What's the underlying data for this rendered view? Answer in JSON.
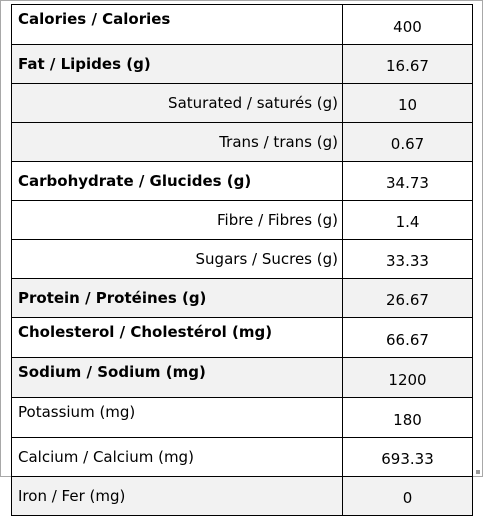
{
  "rows": [
    {
      "label": "Calories / Calories",
      "value": "400"
    },
    {
      "label": "Fat / Lipides  (g)",
      "value": "16.67"
    },
    {
      "label": "Saturated / saturés (g)",
      "value": "10"
    },
    {
      "label": "Trans / trans (g)",
      "value": "0.67"
    },
    {
      "label": "Carbohydrate / Glucides (g)",
      "value": "34.73"
    },
    {
      "label": "Fibre / Fibres (g)",
      "value": "1.4"
    },
    {
      "label": "Sugars / Sucres  (g)",
      "value": "33.33"
    },
    {
      "label": "Protein /  Protéines (g)",
      "value": "26.67"
    },
    {
      "label": "Cholesterol / Cholestérol (mg)",
      "value": "66.67"
    },
    {
      "label": "Sodium / Sodium (mg)",
      "value": "1200"
    },
    {
      "label": "Potassium (mg)",
      "value": "180"
    },
    {
      "label": "Calcium / Calcium (mg)",
      "value": "693.33"
    },
    {
      "label": "Iron / Fer (mg)",
      "value": "0"
    }
  ]
}
